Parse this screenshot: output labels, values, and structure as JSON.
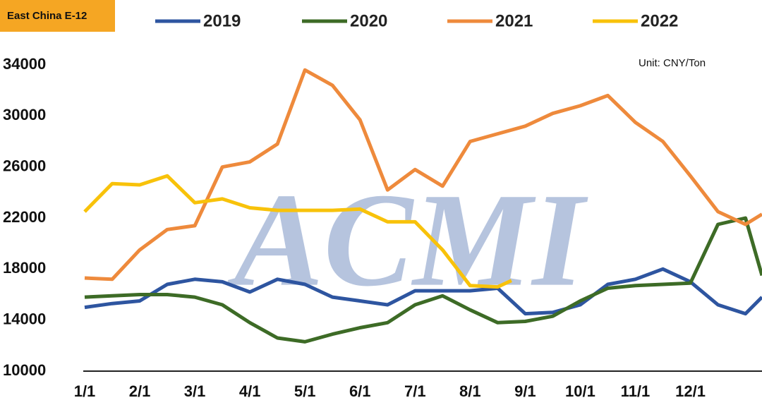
{
  "chart_data": {
    "type": "line",
    "title": "East China E-12",
    "unit_note": "Unit: CNY/Ton",
    "watermark": "ACMI",
    "xlim": [
      0,
      12.3
    ],
    "xticks": [
      {
        "value": 0,
        "label": "1/1"
      },
      {
        "value": 1,
        "label": "2/1"
      },
      {
        "value": 2,
        "label": "3/1"
      },
      {
        "value": 3,
        "label": "4/1"
      },
      {
        "value": 4,
        "label": "5/1"
      },
      {
        "value": 5,
        "label": "6/1"
      },
      {
        "value": 6,
        "label": "7/1"
      },
      {
        "value": 7,
        "label": "8/1"
      },
      {
        "value": 8,
        "label": "9/1"
      },
      {
        "value": 9,
        "label": "10/1"
      },
      {
        "value": 10,
        "label": "11/1"
      },
      {
        "value": 11,
        "label": "12/1"
      }
    ],
    "ylim": [
      10000,
      34000
    ],
    "yticks": [
      10000,
      14000,
      18000,
      22000,
      26000,
      30000,
      34000
    ],
    "grid": false,
    "series": [
      {
        "name": "2019",
        "color": "#2e55a0",
        "x": [
          0,
          0.5,
          1,
          1.5,
          2,
          2.5,
          3,
          3.5,
          4,
          4.5,
          5,
          5.5,
          6,
          6.5,
          7,
          7.5,
          8,
          8.5,
          9,
          9.5,
          10,
          10.5,
          11,
          11.5,
          12,
          12.3
        ],
        "values": [
          15000,
          15300,
          15500,
          16800,
          17200,
          17000,
          16200,
          17200,
          16800,
          15800,
          15500,
          15200,
          16300,
          16300,
          16300,
          16500,
          14500,
          14600,
          15200,
          16800,
          17200,
          18000,
          17000,
          15200,
          14500,
          15800
        ]
      },
      {
        "name": "2020",
        "color": "#3d6b26",
        "x": [
          0,
          0.5,
          1,
          1.5,
          2,
          2.5,
          3,
          3.5,
          4,
          4.5,
          5,
          5.5,
          6,
          6.5,
          7,
          7.5,
          8,
          8.5,
          9,
          9.5,
          10,
          10.5,
          11,
          11.5,
          12,
          12.3
        ],
        "values": [
          15800,
          15900,
          16000,
          16000,
          15800,
          15200,
          13800,
          12600,
          12300,
          12900,
          13400,
          13800,
          15200,
          15900,
          14800,
          13800,
          13900,
          14300,
          15500,
          16500,
          16700,
          16800,
          16900,
          21500,
          22000,
          17500
        ]
      },
      {
        "name": "2021",
        "color": "#ee8a3c",
        "x": [
          0,
          0.5,
          1,
          1.5,
          2,
          2.5,
          3,
          3.5,
          4,
          4.5,
          5,
          5.5,
          6,
          6.5,
          7,
          7.5,
          8,
          8.5,
          9,
          9.5,
          10,
          10.5,
          11,
          11.5,
          12,
          12.3
        ],
        "values": [
          17300,
          17200,
          19500,
          21100,
          21400,
          26000,
          26400,
          27800,
          33600,
          32400,
          29700,
          24200,
          25800,
          24500,
          28000,
          28600,
          29200,
          30200,
          30800,
          31600,
          29500,
          28000,
          25300,
          22500,
          21500,
          22300
        ]
      },
      {
        "name": "2022",
        "color": "#f8c20a",
        "x": [
          0,
          0.5,
          1,
          1.5,
          2,
          2.5,
          3,
          3.5,
          4,
          4.5,
          5,
          5.5,
          6,
          6.5,
          7,
          7.5,
          7.75
        ],
        "values": [
          22500,
          24700,
          24600,
          25300,
          23200,
          23500,
          22800,
          22600,
          22600,
          22600,
          22700,
          21700,
          21700,
          19500,
          16700,
          16600,
          17100
        ]
      }
    ]
  }
}
